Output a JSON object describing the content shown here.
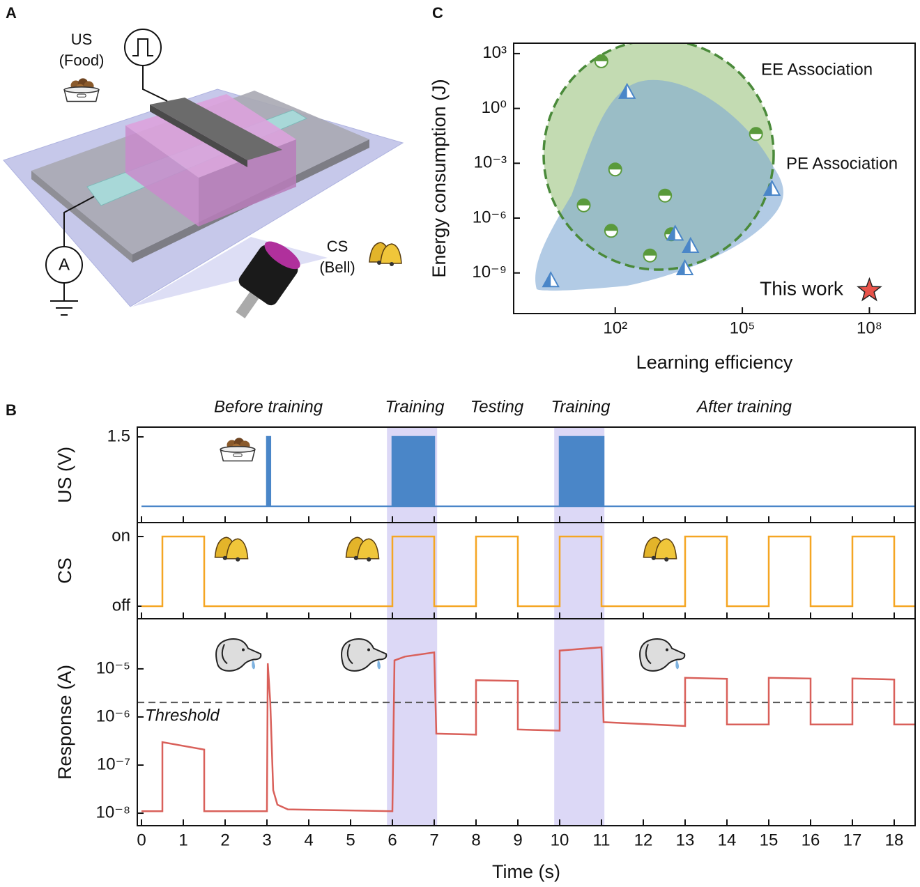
{
  "figure_labels": {
    "a": "A",
    "b": "B",
    "c": "C"
  },
  "diagram": {
    "us_label": "US",
    "us_sub": "(Food)",
    "cs_label": "CS",
    "cs_sub": "(Bell)",
    "ammeter": "A"
  },
  "chart_data": [
    {
      "type": "scatter",
      "xlabel": "Learning efficiency",
      "ylabel": "Energy consumption (J)",
      "xscale": "log",
      "yscale": "log",
      "xlim": [
        0.4,
        1200000000
      ],
      "ylim": [
        6e-12,
        3700
      ],
      "xticks": [
        {
          "value": 100,
          "label": "10²"
        },
        {
          "value": 100000,
          "label": "10⁵"
        },
        {
          "value": 100000000,
          "label": "10⁸"
        }
      ],
      "yticks": [
        {
          "value": 1000,
          "label": "10³"
        },
        {
          "value": 1,
          "label": "10⁰"
        },
        {
          "value": 0.001,
          "label": "10⁻³"
        },
        {
          "value": 1e-06,
          "label": "10⁻⁶"
        },
        {
          "value": 1e-09,
          "label": "10⁻⁹"
        }
      ],
      "series": [
        {
          "name": "EE Association",
          "color": "#5a9a3c",
          "marker": "circle",
          "x": [
            47,
            210000,
            100,
            1500,
            18,
            80,
            2100,
            660
          ],
          "values": [
            380,
            0.04,
            0.00046,
            1.7e-05,
            5e-06,
            2e-07,
            1.3e-07,
            9e-09
          ]
        },
        {
          "name": "PE Association",
          "color": "#4a86c8",
          "marker": "triangle",
          "x": [
            190,
            500000,
            2600,
            6000,
            4400,
            3
          ],
          "values": [
            8,
            4e-05,
            1.4e-07,
            3e-08,
            1.8e-09,
            4e-10
          ]
        },
        {
          "name": "This work",
          "color": "#e8534a",
          "marker": "star",
          "x": [
            100000000
          ],
          "values": [
            1.1e-10
          ]
        }
      ]
    },
    {
      "type": "area",
      "ylabel": "US (V)",
      "xlim": [
        -0.1,
        18.5
      ],
      "ylim": [
        -0.35,
        1.71
      ],
      "yticks": [
        1.5
      ],
      "color": "#4a86c8",
      "annotations": [
        "Before training",
        "Training",
        "Testing",
        "Training",
        "After training"
      ],
      "highlight_spans": [
        [
          5.87,
          7.07
        ],
        [
          9.87,
          11.07
        ]
      ],
      "highlight_color": "#dcd8f6",
      "x": [
        0,
        3,
        3,
        3.08,
        3.08,
        6,
        6,
        7,
        7,
        10,
        10,
        11.05,
        11.05,
        18.5
      ],
      "values": [
        0,
        0,
        1.5,
        1.5,
        0,
        0,
        1.5,
        1.5,
        0,
        0,
        1.5,
        1.5,
        0,
        0
      ]
    },
    {
      "type": "line",
      "ylabel": "CS",
      "xlim": [
        -0.1,
        18.5
      ],
      "ylim": [
        -0.18,
        1.2
      ],
      "color": "#f5a623",
      "yticks": [
        {
          "value": 1,
          "label": "on"
        },
        {
          "value": 0,
          "label": "off"
        }
      ],
      "x": [
        0,
        0.5,
        0.5,
        1.5,
        1.5,
        6,
        6,
        7,
        7,
        8,
        8,
        9,
        9,
        10,
        10,
        11,
        11,
        13,
        13,
        14,
        14,
        15,
        15,
        16,
        16,
        17,
        17,
        18,
        18,
        18.5
      ],
      "values": [
        0,
        0,
        1,
        1,
        0,
        0,
        1,
        1,
        0,
        0,
        1,
        1,
        0,
        0,
        1,
        1,
        0,
        0,
        1,
        1,
        0,
        0,
        1,
        1,
        0,
        0,
        1,
        1,
        0,
        0
      ]
    },
    {
      "type": "line",
      "ylabel": "Response (A)",
      "xlabel": "Time (s)",
      "yscale": "log",
      "xlim": [
        -0.1,
        18.5
      ],
      "ylim": [
        5.5e-09,
        0.00011
      ],
      "color": "#d9605a",
      "xticks": [
        0,
        1,
        2,
        3,
        4,
        5,
        6,
        7,
        8,
        9,
        10,
        11,
        12,
        13,
        14,
        15,
        16,
        17,
        18
      ],
      "yticks": [
        {
          "value": 1e-08,
          "label": "10⁻⁸"
        },
        {
          "value": 1e-07,
          "label": "10⁻⁷"
        },
        {
          "value": 1e-06,
          "label": "10⁻⁶"
        },
        {
          "value": 1e-05,
          "label": "10⁻⁵"
        }
      ],
      "threshold": 2e-06,
      "threshold_label": "Threshold",
      "x": [
        0,
        0.5,
        0.5,
        1.5,
        1.5,
        3.0,
        3.02,
        3.08,
        3.15,
        3.25,
        3.5,
        6.0,
        6.05,
        6.3,
        7.0,
        7.05,
        8,
        8,
        9,
        9,
        10,
        10,
        11,
        11.05,
        13,
        13,
        14,
        14,
        15,
        15,
        16,
        16,
        17,
        17,
        18,
        18,
        18.5
      ],
      "values": [
        1.1e-08,
        1.1e-08,
        3e-07,
        2.1e-07,
        1.1e-08,
        1.1e-08,
        1.3e-05,
        2e-06,
        3e-08,
        1.5e-08,
        1.2e-08,
        1.1e-08,
        1.5e-05,
        1.8e-05,
        2.2e-05,
        4.5e-07,
        4.3e-07,
        5.8e-06,
        5.6e-06,
        5.5e-07,
        5.2e-07,
        2.4e-05,
        2.8e-05,
        7.8e-07,
        6.5e-07,
        6.5e-06,
        6.2e-06,
        7e-07,
        7e-07,
        6.5e-06,
        6.3e-06,
        7e-07,
        7e-07,
        6.3e-06,
        6e-06,
        7e-07,
        7e-07
      ]
    }
  ]
}
